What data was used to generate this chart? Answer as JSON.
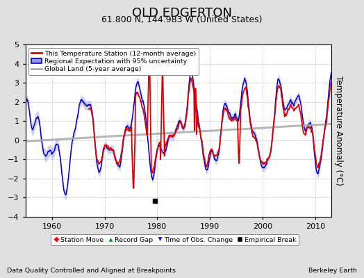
{
  "title": "OLD EDGERTON",
  "subtitle": "61.800 N, 144.983 W (United States)",
  "ylabel": "Temperature Anomaly (°C)",
  "xlabel_note": "Data Quality Controlled and Aligned at Breakpoints",
  "credit": "Berkeley Earth",
  "xlim": [
    1955.0,
    2013.0
  ],
  "ylim": [
    -4,
    5
  ],
  "yticks": [
    -4,
    -3,
    -2,
    -1,
    0,
    1,
    2,
    3,
    4,
    5
  ],
  "xticks": [
    1960,
    1970,
    1980,
    1990,
    2000,
    2010
  ],
  "bg_color": "#e0e0e0",
  "plot_bg_color": "#ffffff",
  "red_line_color": "#dd0000",
  "blue_line_color": "#0000cc",
  "blue_fill_color": "#9999dd",
  "gray_line_color": "#aaaaaa",
  "title_fontsize": 13,
  "subtitle_fontsize": 9,
  "axis_fontsize": 8,
  "legend_fontsize": 7.5,
  "seed": 42,
  "empirical_break_x": 1979.5,
  "empirical_break_y": -3.15
}
